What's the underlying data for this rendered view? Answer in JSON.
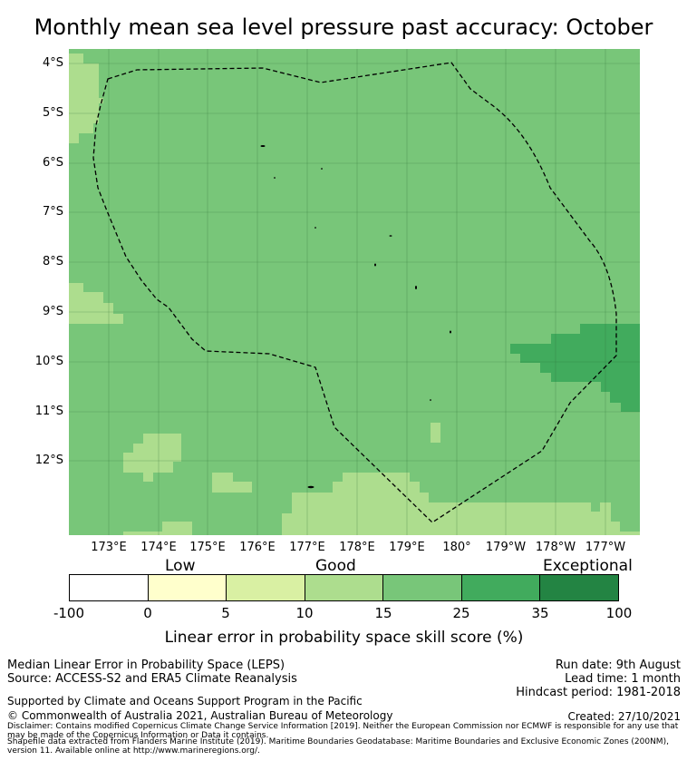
{
  "title": "Monthly mean sea level pressure past accuracy: October",
  "map": {
    "y_ticks": [
      "4°S",
      "5°S",
      "6°S",
      "7°S",
      "8°S",
      "9°S",
      "10°S",
      "11°S",
      "12°S"
    ],
    "x_ticks": [
      "173°E",
      "174°E",
      "175°E",
      "176°E",
      "177°E",
      "178°E",
      "179°E",
      "180°",
      "179°W",
      "178°W",
      "177°W"
    ],
    "boundary": "Maritime Boundaries Geodatabase: Maritime Boundaries and Exclusive Economic Zones (200NM)"
  },
  "colorbar": {
    "categories": [
      "Low",
      "Good",
      "Exceptional"
    ],
    "ticks": [
      "-100",
      "0",
      "5",
      "10",
      "15",
      "25",
      "35",
      "100"
    ],
    "colors": [
      "#ffffff",
      "#ffffcc",
      "#d9f0a3",
      "#addd8e",
      "#78c679",
      "#41ab5d",
      "#238443"
    ],
    "label": "Linear error in probability space skill score (%)"
  },
  "footer": {
    "left1": "Median Linear Error in Probability Space (LEPS)",
    "left2": "Source: ACCESS-S2 and ERA5 Climate Reanalysis",
    "right1": "Run date: 9th August",
    "right2": "Lead time: 1 month",
    "right3": "Hindcast period: 1981-2018",
    "support": "Supported by Climate and Oceans Support Program in the Pacific",
    "copyright": "© Commonwealth of Australia 2021, Australian Bureau of Meteorology",
    "created": "Created: 27/10/2021",
    "disclaimer1": "Disclaimer: Contains modified Copernicus Climate Change Service Information [2019]. Neither the European Commission nor ECMWF is responsible for any use that may be made of the Copernicus Information or Data it contains.",
    "disclaimer2": "Shapefile data extracted from Flanders Marine Institute (2019). Maritime Boundaries Geodatabase: Maritime Boundaries and Exclusive Economic Zones (200NM), version 11. Available online at http://www.marineregions.org/."
  }
}
